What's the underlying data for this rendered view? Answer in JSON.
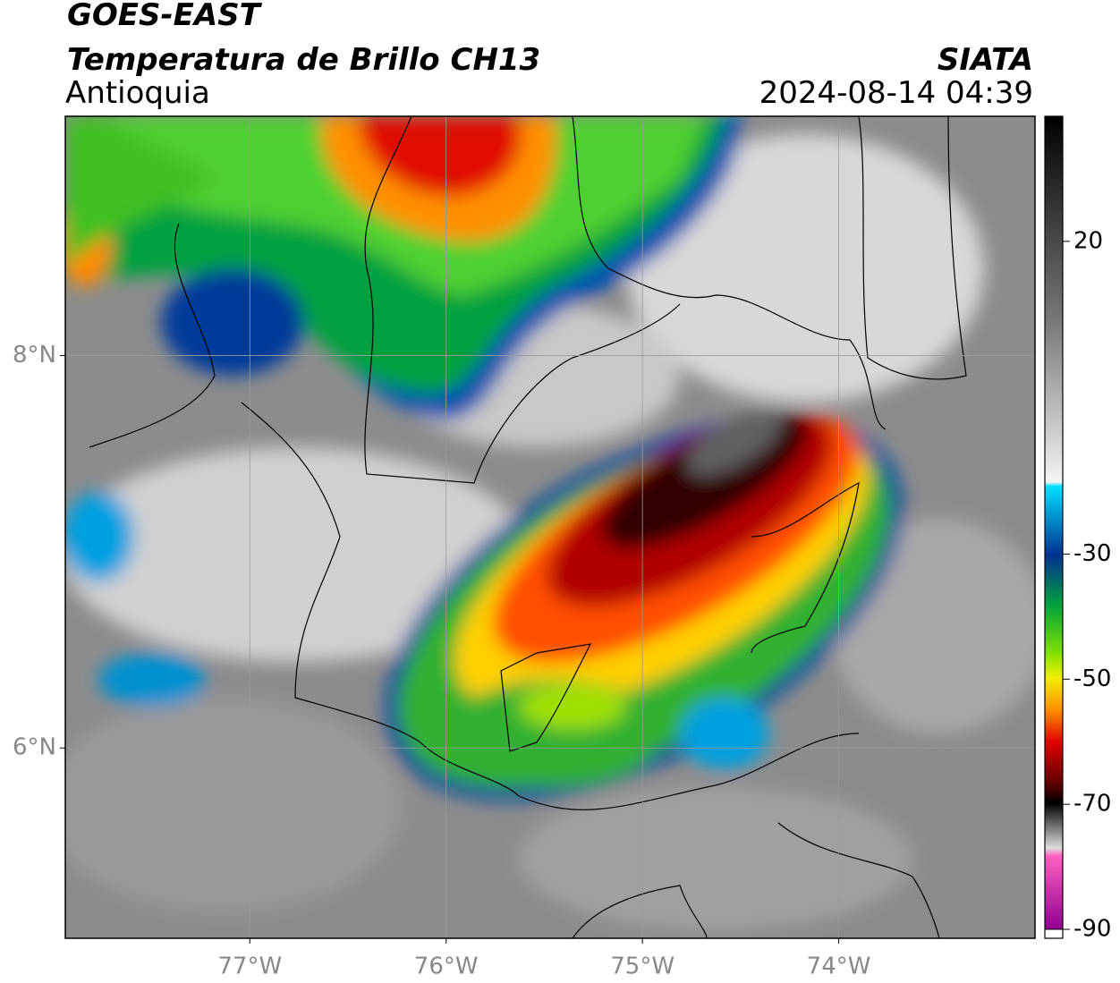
{
  "header": {
    "title": "GOES-EAST",
    "subtitle": "Temperatura de Brillo CH13",
    "region": "Antioquia",
    "source": "SIATA",
    "timestamp": "2024-08-14 04:39"
  },
  "map": {
    "xlim": [
      -77.94,
      -73.0
    ],
    "ylim": [
      5.03,
      9.22
    ],
    "xticks": [
      {
        "value": -77,
        "label": "77°W"
      },
      {
        "value": -76,
        "label": "76°W"
      },
      {
        "value": -75,
        "label": "75°W"
      },
      {
        "value": -74,
        "label": "74°W"
      }
    ],
    "yticks": [
      {
        "value": 6,
        "label": "6°N"
      },
      {
        "value": 8,
        "label": "8°N"
      }
    ],
    "grid": true
  },
  "colorbar": {
    "lim": [
      -90,
      40
    ],
    "ticks": [
      20,
      -30,
      -50,
      -70,
      -90
    ]
  }
}
